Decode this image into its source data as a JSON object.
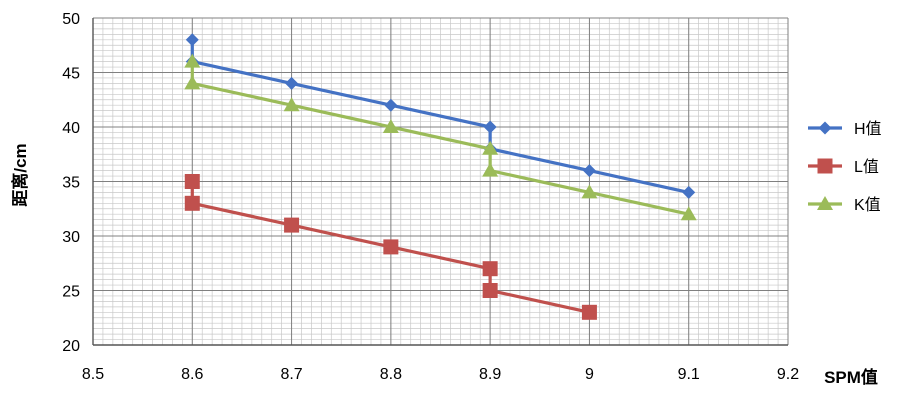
{
  "chart_data": {
    "type": "line",
    "title": "",
    "xlabel": "SPM值",
    "ylabel": "距离/cm",
    "xlim": [
      8.5,
      9.2
    ],
    "ylim": [
      20,
      50
    ],
    "x_ticks": [
      8.5,
      8.6,
      8.7,
      8.8,
      8.9,
      9.0,
      9.1,
      9.2
    ],
    "x_tick_labels": [
      "8.5",
      "8.6",
      "8.7",
      "8.8",
      "8.9",
      "9",
      "9.1",
      "9.2"
    ],
    "y_ticks": [
      20,
      25,
      30,
      35,
      40,
      45,
      50
    ],
    "y_tick_labels": [
      "20",
      "25",
      "30",
      "35",
      "40",
      "45",
      "50"
    ],
    "grid": true,
    "legend_position": "right",
    "series": [
      {
        "name": "H值",
        "color": "#4472C4",
        "marker": "diamond",
        "points": [
          [
            8.6,
            48
          ],
          [
            8.6,
            46
          ],
          [
            8.7,
            44
          ],
          [
            8.8,
            42
          ],
          [
            8.9,
            40
          ],
          [
            8.9,
            38
          ],
          [
            9.0,
            36
          ],
          [
            9.1,
            34
          ]
        ]
      },
      {
        "name": "L值",
        "color": "#C0504D",
        "marker": "square",
        "points": [
          [
            8.6,
            35
          ],
          [
            8.6,
            33
          ],
          [
            8.7,
            31
          ],
          [
            8.8,
            29
          ],
          [
            8.9,
            27
          ],
          [
            8.9,
            25
          ],
          [
            9.0,
            23
          ]
        ]
      },
      {
        "name": "K值",
        "color": "#9BBB59",
        "marker": "triangle",
        "points": [
          [
            8.6,
            46
          ],
          [
            8.6,
            44
          ],
          [
            8.7,
            42
          ],
          [
            8.8,
            40
          ],
          [
            8.9,
            38
          ],
          [
            8.9,
            36
          ],
          [
            9.0,
            34
          ],
          [
            9.1,
            32
          ]
        ]
      }
    ]
  }
}
